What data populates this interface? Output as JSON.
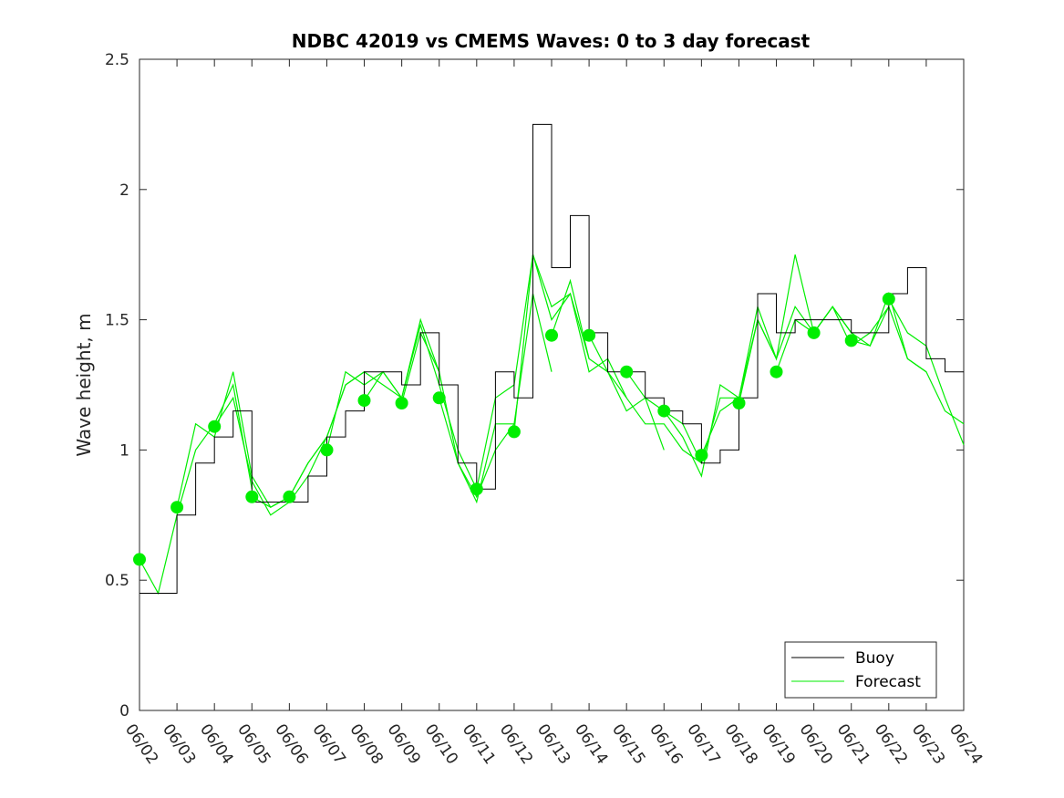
{
  "chart_data": {
    "type": "line",
    "title": "NDBC 42019 vs CMEMS Waves: 0 to 3 day forecast",
    "xlabel": "",
    "ylabel": "Wave height, m",
    "xlim": [
      "06/02",
      "06/24"
    ],
    "ylim": [
      0,
      2.5
    ],
    "yticks": [
      0,
      0.5,
      1,
      1.5,
      2,
      2.5
    ],
    "ytick_labels": [
      "0",
      "0.5",
      "1",
      "1.5",
      "2",
      "2.5"
    ],
    "xtick_labels": [
      "06/02",
      "06/03",
      "06/04",
      "06/05",
      "06/06",
      "06/07",
      "06/08",
      "06/09",
      "06/10",
      "06/11",
      "06/12",
      "06/13",
      "06/14",
      "06/15",
      "06/16",
      "06/17",
      "06/18",
      "06/19",
      "06/20",
      "06/21",
      "06/22",
      "06/23",
      "06/24"
    ],
    "grid": false,
    "legend": {
      "position": "bottom-right",
      "entries": [
        "Buoy",
        "Forecast"
      ]
    },
    "colors": {
      "buoy": "#000000",
      "forecast": "#00ee00",
      "analysis_points": "#00ee00",
      "axes": "#262626"
    },
    "series": [
      {
        "name": "Buoy",
        "x": [
          "06/02",
          "06/02 12h",
          "06/03",
          "06/03 12h",
          "06/04",
          "06/04 12h",
          "06/05",
          "06/05 12h",
          "06/06",
          "06/06 12h",
          "06/07",
          "06/07 12h",
          "06/08",
          "06/08 12h",
          "06/09",
          "06/09 12h",
          "06/10",
          "06/10 12h",
          "06/11",
          "06/11 12h",
          "06/12",
          "06/12 12h",
          "06/13",
          "06/13 12h",
          "06/14",
          "06/14 12h",
          "06/15",
          "06/15 12h",
          "06/16",
          "06/16 12h",
          "06/17",
          "06/17 12h",
          "06/18",
          "06/18 12h",
          "06/19",
          "06/19 12h",
          "06/20",
          "06/20 12h",
          "06/21",
          "06/21 12h",
          "06/22",
          "06/22 12h",
          "06/23",
          "06/23 12h"
        ],
        "values": [
          0.45,
          0.45,
          0.75,
          0.95,
          1.05,
          1.15,
          0.8,
          0.8,
          0.8,
          0.9,
          1.05,
          1.15,
          1.3,
          1.3,
          1.25,
          1.45,
          1.25,
          0.95,
          0.85,
          1.3,
          1.2,
          2.25,
          1.7,
          1.9,
          1.45,
          1.3,
          1.3,
          1.2,
          1.15,
          1.1,
          0.95,
          1.0,
          1.2,
          1.6,
          1.45,
          1.5,
          1.5,
          1.5,
          1.45,
          1.45,
          1.6,
          1.7,
          1.35,
          1.3
        ]
      }
    ],
    "forecast_runs": [
      {
        "start": "06/02",
        "x": [
          "06/02",
          "06/02 12h",
          "06/03",
          "06/03 12h",
          "06/04",
          "06/04 12h",
          "06/05"
        ],
        "values": [
          0.58,
          0.45,
          0.75,
          1.0,
          1.1,
          1.25,
          0.85
        ]
      },
      {
        "start": "06/03",
        "x": [
          "06/03",
          "06/03 12h",
          "06/04",
          "06/04 12h",
          "06/05",
          "06/05 12h",
          "06/06"
        ],
        "values": [
          0.78,
          1.1,
          1.05,
          1.3,
          0.9,
          0.78,
          0.82
        ]
      },
      {
        "start": "06/04",
        "x": [
          "06/04",
          "06/04 12h",
          "06/05",
          "06/05 12h",
          "06/06",
          "06/06 12h",
          "06/07"
        ],
        "values": [
          1.09,
          1.2,
          0.88,
          0.75,
          0.8,
          0.9,
          1.05
        ]
      },
      {
        "start": "06/05",
        "x": [
          "06/05",
          "06/05 12h",
          "06/06",
          "06/06 12h",
          "06/07",
          "06/07 12h",
          "06/08"
        ],
        "values": [
          0.82,
          0.78,
          0.82,
          0.95,
          1.05,
          1.25,
          1.3
        ]
      },
      {
        "start": "06/06",
        "x": [
          "06/06",
          "06/06 12h",
          "06/07",
          "06/07 12h",
          "06/08",
          "06/08 12h",
          "06/09"
        ],
        "values": [
          0.82,
          0.95,
          1.05,
          1.25,
          1.3,
          1.25,
          1.2
        ]
      },
      {
        "start": "06/07",
        "x": [
          "06/07",
          "06/07 12h",
          "06/08",
          "06/08 12h",
          "06/09",
          "06/09 12h",
          "06/10"
        ],
        "values": [
          1.0,
          1.3,
          1.25,
          1.3,
          1.2,
          1.5,
          1.3
        ]
      },
      {
        "start": "06/08",
        "x": [
          "06/08",
          "06/08 12h",
          "06/09",
          "06/09 12h",
          "06/10",
          "06/10 12h",
          "06/11"
        ],
        "values": [
          1.19,
          1.3,
          1.2,
          1.48,
          1.25,
          1.0,
          0.85
        ]
      },
      {
        "start": "06/09",
        "x": [
          "06/09",
          "06/09 12h",
          "06/10",
          "06/10 12h",
          "06/11",
          "06/11 12h",
          "06/12"
        ],
        "values": [
          1.18,
          1.45,
          1.3,
          0.95,
          0.8,
          1.1,
          1.1
        ]
      },
      {
        "start": "06/10",
        "x": [
          "06/10",
          "06/10 12h",
          "06/11",
          "06/11 12h",
          "06/12",
          "06/12 12h",
          "06/13"
        ],
        "values": [
          1.2,
          0.95,
          0.82,
          1.0,
          1.1,
          1.6,
          1.3
        ]
      },
      {
        "start": "06/11",
        "x": [
          "06/11",
          "06/11 12h",
          "06/12",
          "06/12 12h",
          "06/13",
          "06/13 12h",
          "06/14"
        ],
        "values": [
          0.85,
          1.2,
          1.25,
          1.75,
          1.5,
          1.6,
          1.35
        ]
      },
      {
        "start": "06/12",
        "x": [
          "06/12",
          "06/12 12h",
          "06/13",
          "06/13 12h",
          "06/14",
          "06/14 12h",
          "06/15"
        ],
        "values": [
          1.07,
          1.75,
          1.55,
          1.6,
          1.3,
          1.35,
          1.2
        ]
      },
      {
        "start": "06/13",
        "x": [
          "06/13",
          "06/13 12h",
          "06/14",
          "06/14 12h",
          "06/15",
          "06/15 12h",
          "06/16"
        ],
        "values": [
          1.44,
          1.65,
          1.35,
          1.3,
          1.15,
          1.2,
          1.0
        ]
      },
      {
        "start": "06/14",
        "x": [
          "06/14",
          "06/14 12h",
          "06/15",
          "06/15 12h",
          "06/16",
          "06/16 12h",
          "06/17"
        ],
        "values": [
          1.44,
          1.3,
          1.2,
          1.1,
          1.1,
          1.0,
          0.95
        ]
      },
      {
        "start": "06/15",
        "x": [
          "06/15",
          "06/15 12h",
          "06/16",
          "06/16 12h",
          "06/17",
          "06/17 12h",
          "06/18"
        ],
        "values": [
          1.3,
          1.2,
          1.15,
          1.1,
          0.95,
          1.2,
          1.2
        ]
      },
      {
        "start": "06/16",
        "x": [
          "06/16",
          "06/16 12h",
          "06/17",
          "06/17 12h",
          "06/18",
          "06/18 12h",
          "06/19"
        ],
        "values": [
          1.15,
          1.05,
          0.9,
          1.25,
          1.2,
          1.5,
          1.35
        ]
      },
      {
        "start": "06/17",
        "x": [
          "06/17",
          "06/17 12h",
          "06/18",
          "06/18 12h",
          "06/19",
          "06/19 12h",
          "06/20"
        ],
        "values": [
          0.98,
          1.15,
          1.2,
          1.55,
          1.35,
          1.75,
          1.45
        ]
      },
      {
        "start": "06/18",
        "x": [
          "06/18",
          "06/18 12h",
          "06/19",
          "06/19 12h",
          "06/20",
          "06/20 12h",
          "06/21"
        ],
        "values": [
          1.18,
          1.5,
          1.35,
          1.55,
          1.45,
          1.55,
          1.45
        ]
      },
      {
        "start": "06/19",
        "x": [
          "06/19",
          "06/19 12h",
          "06/20",
          "06/20 12h",
          "06/21",
          "06/21 12h",
          "06/22"
        ],
        "values": [
          1.3,
          1.5,
          1.45,
          1.55,
          1.4,
          1.45,
          1.55
        ]
      },
      {
        "start": "06/20",
        "x": [
          "06/20",
          "06/20 12h",
          "06/21",
          "06/21 12h",
          "06/22",
          "06/22 12h",
          "06/23"
        ],
        "values": [
          1.45,
          1.55,
          1.45,
          1.4,
          1.6,
          1.35,
          1.3
        ]
      },
      {
        "start": "06/21",
        "x": [
          "06/21",
          "06/21 12h",
          "06/22",
          "06/22 12h",
          "06/23",
          "06/23 12h",
          "06/24"
        ],
        "values": [
          1.42,
          1.4,
          1.55,
          1.35,
          1.3,
          1.15,
          1.1
        ]
      },
      {
        "start": "06/22",
        "x": [
          "06/22",
          "06/22 12h",
          "06/23",
          "06/23 12h",
          "06/24"
        ],
        "values": [
          1.58,
          1.45,
          1.4,
          1.2,
          1.02
        ]
      }
    ],
    "analysis_points": {
      "x": [
        "06/02",
        "06/03",
        "06/04",
        "06/05",
        "06/06",
        "06/07",
        "06/08",
        "06/09",
        "06/10",
        "06/11",
        "06/12",
        "06/13",
        "06/14",
        "06/15",
        "06/16",
        "06/17",
        "06/18",
        "06/19",
        "06/20",
        "06/21",
        "06/22"
      ],
      "values": [
        0.58,
        0.78,
        1.09,
        0.82,
        0.82,
        1.0,
        1.19,
        1.18,
        1.2,
        0.85,
        1.07,
        1.44,
        1.44,
        1.3,
        1.15,
        0.98,
        1.18,
        1.3,
        1.45,
        1.42,
        1.58
      ]
    }
  }
}
